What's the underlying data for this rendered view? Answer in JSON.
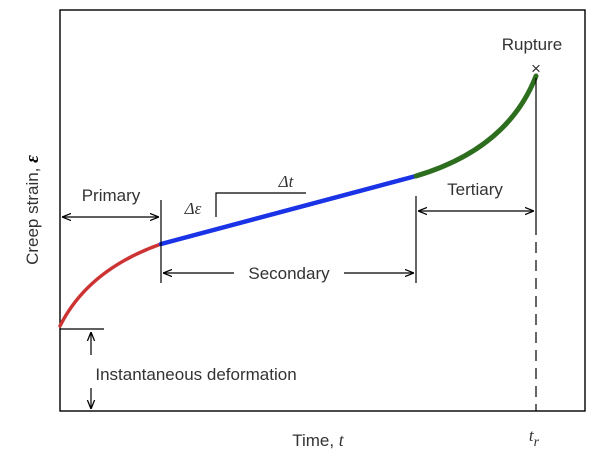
{
  "axes": {
    "ylabel_text": "Creep strain, ",
    "ylabel_symbol": "ε",
    "xlabel_text": "Time, ",
    "xlabel_symbol": "t"
  },
  "stages": {
    "primary": "Primary",
    "secondary": "Secondary",
    "tertiary": "Tertiary"
  },
  "annotations": {
    "rupture": "Rupture",
    "rupture_marker": "×",
    "instantaneous": "Instantaneous deformation",
    "delta_epsilon": "Δε",
    "delta_t": "Δt",
    "tr_base": "t",
    "tr_sub": "r"
  },
  "colors": {
    "primary": "#cc3333",
    "secondary": "#1a33e6",
    "tertiary": "#2d6e1e",
    "rupture_marker": "#e05050",
    "axis": "#000000"
  }
}
